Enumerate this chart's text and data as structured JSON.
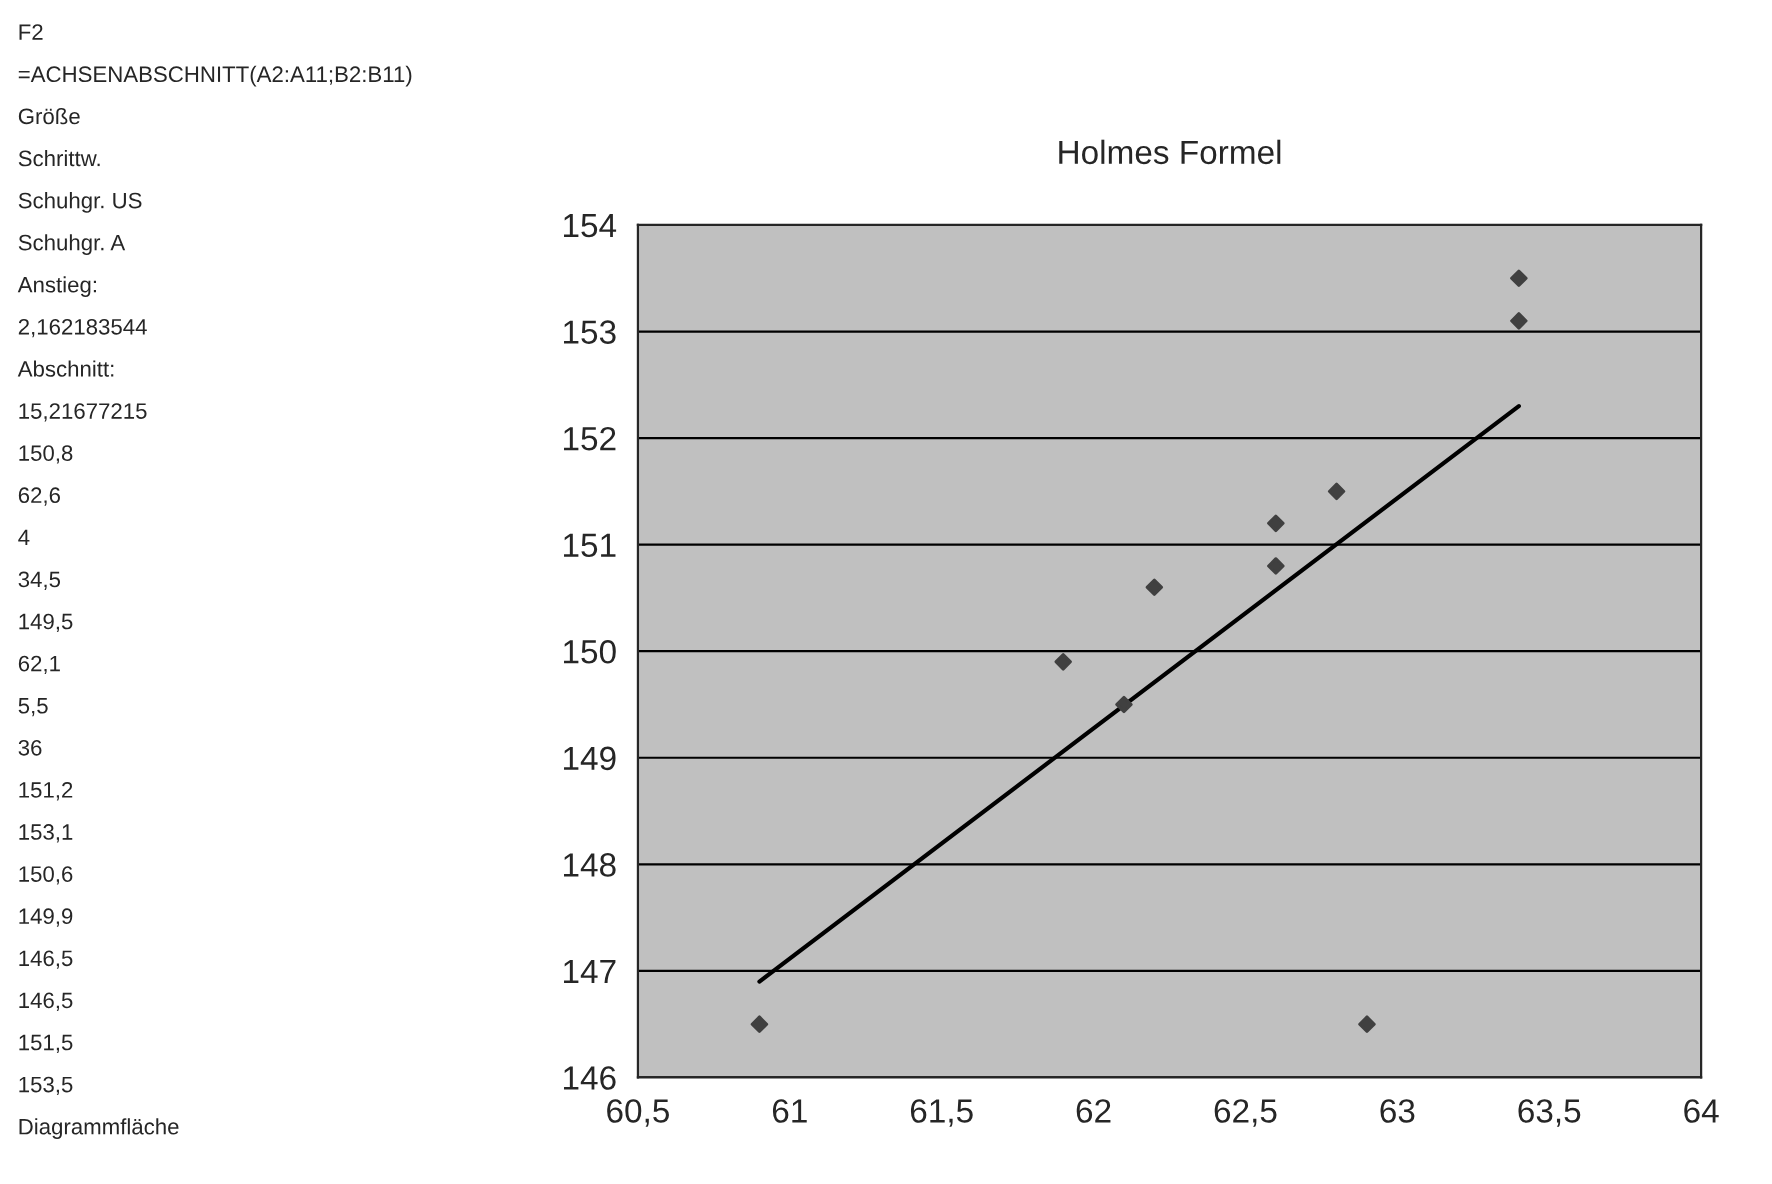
{
  "chart_data": {
    "type": "scatter",
    "title": "Holmes Formel",
    "series": [
      {
        "color": "#404040",
        "marker": "diamond",
        "x": [
          60.9,
          61.9,
          62.1,
          62.2,
          62.6,
          62.6,
          62.8,
          62.9,
          63.4,
          63.4
        ],
        "values": [
          146.5,
          149.9,
          149.5,
          150.6,
          150.8,
          151.2,
          151.5,
          146.5,
          153.1,
          153.5
        ]
      },
      {
        "type": "line",
        "color": "#000000",
        "x": [
          60.9,
          63.4
        ],
        "values": [
          146.9,
          152.3
        ]
      }
    ],
    "xlim": [
      60.5,
      64
    ],
    "xticks": [
      {
        "value": 60.5,
        "label": "60,5"
      },
      61,
      {
        "value": 61.5,
        "label": "61,5"
      },
      62,
      {
        "value": 62.5,
        "label": "62,5"
      },
      63,
      {
        "value": 63.5,
        "label": "63,5"
      },
      64
    ],
    "ylim": [
      146,
      154
    ],
    "yticks": [
      146,
      147,
      148,
      149,
      150,
      151,
      152,
      153,
      154
    ],
    "grid": "y",
    "annotations": [
      "F2",
      "=ACHSENABSCHNITT(A2:A11;B2:B11)",
      "Größe",
      "Schrittw.",
      "Schuhgr. US",
      "Schuhgr. A",
      "Anstieg:",
      "2,162183544",
      "Abschnitt:",
      "15,21677215",
      "150,8",
      "62,6",
      "4",
      "34,5",
      "149,5",
      "62,1",
      "5,5",
      "36",
      "151,2",
      "153,1",
      "150,6",
      "149,9",
      "146,5",
      "146,5",
      "151,5",
      "153,5",
      "Diagrammfläche"
    ]
  }
}
